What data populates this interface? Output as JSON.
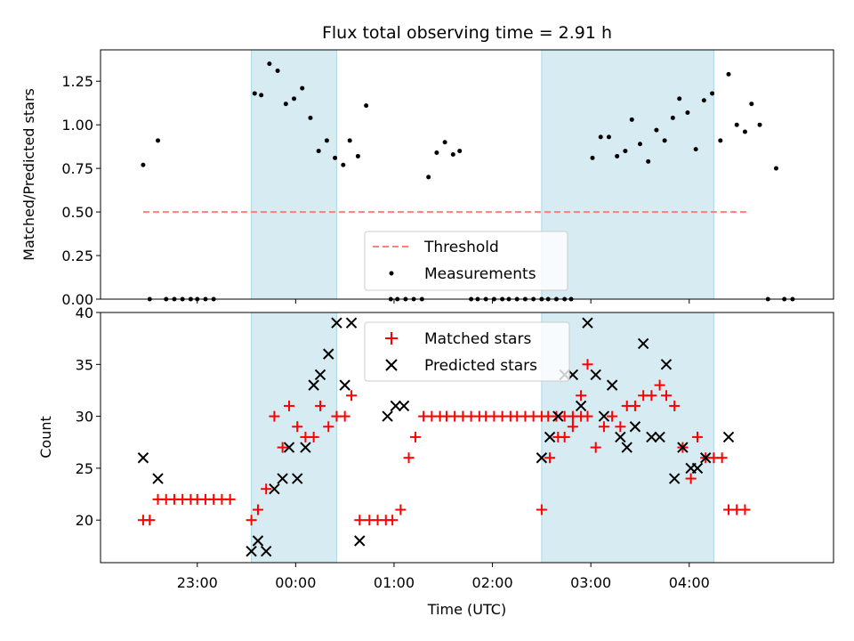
{
  "chart_data": [
    {
      "type": "scatter",
      "title": "Flux total observing time = 2.91 h",
      "ylabel": "Matched/Predicted stars",
      "ylim": [
        0,
        1.43
      ],
      "yticks": [
        0.0,
        0.25,
        0.5,
        0.75,
        1.0,
        1.25
      ],
      "ytick_labels": [
        "0.00",
        "0.25",
        "0.50",
        "0.75",
        "1.00",
        "1.25"
      ],
      "shaded_spans": [
        [
          "23:33",
          "00:25"
        ],
        [
          "02:30",
          "04:15"
        ]
      ],
      "threshold_line": {
        "y": 0.5,
        "x_start": "22:27",
        "x_end": "04:36",
        "color": "#ff7f7f",
        "style": "dashed"
      },
      "legend": {
        "position": "bottom-center",
        "entries": [
          "Threshold",
          "Measurements"
        ]
      },
      "series": [
        {
          "name": "Measurements",
          "color": "#000000",
          "marker": "dot",
          "points": [
            [
              "22:27",
              0.77
            ],
            [
              "22:31",
              0.0
            ],
            [
              "22:36",
              0.91
            ],
            [
              "22:41",
              0.0
            ],
            [
              "22:46",
              0.0
            ],
            [
              "22:51",
              0.0
            ],
            [
              "22:56",
              0.0
            ],
            [
              "23:00",
              0.0
            ],
            [
              "23:05",
              0.0
            ],
            [
              "23:10",
              0.0
            ],
            [
              "23:35",
              1.18
            ],
            [
              "23:39",
              1.17
            ],
            [
              "23:44",
              1.35
            ],
            [
              "23:49",
              1.31
            ],
            [
              "23:54",
              1.12
            ],
            [
              "23:59",
              1.15
            ],
            [
              "00:04",
              1.21
            ],
            [
              "00:09",
              1.04
            ],
            [
              "00:14",
              0.85
            ],
            [
              "00:19",
              0.91
            ],
            [
              "00:24",
              0.81
            ],
            [
              "00:29",
              0.77
            ],
            [
              "00:33",
              0.91
            ],
            [
              "00:38",
              0.82
            ],
            [
              "00:43",
              1.11
            ],
            [
              "00:58",
              0.0
            ],
            [
              "01:02",
              0.0
            ],
            [
              "01:07",
              0.0
            ],
            [
              "01:12",
              0.0
            ],
            [
              "01:17",
              0.0
            ],
            [
              "01:21",
              0.7
            ],
            [
              "01:26",
              0.84
            ],
            [
              "01:31",
              0.9
            ],
            [
              "01:36",
              0.83
            ],
            [
              "01:40",
              0.85
            ],
            [
              "01:47",
              0.0
            ],
            [
              "01:51",
              0.0
            ],
            [
              "01:56",
              0.0
            ],
            [
              "02:01",
              0.0
            ],
            [
              "02:06",
              0.0
            ],
            [
              "02:10",
              0.0
            ],
            [
              "02:15",
              0.0
            ],
            [
              "02:20",
              0.0
            ],
            [
              "02:25",
              0.0
            ],
            [
              "02:30",
              0.0
            ],
            [
              "02:34",
              0.0
            ],
            [
              "02:39",
              0.0
            ],
            [
              "02:44",
              0.0
            ],
            [
              "02:48",
              0.0
            ],
            [
              "03:01",
              0.81
            ],
            [
              "03:06",
              0.93
            ],
            [
              "03:11",
              0.93
            ],
            [
              "03:16",
              0.82
            ],
            [
              "03:21",
              0.85
            ],
            [
              "03:25",
              1.03
            ],
            [
              "03:30",
              0.89
            ],
            [
              "03:35",
              0.79
            ],
            [
              "03:40",
              0.97
            ],
            [
              "03:45",
              0.91
            ],
            [
              "03:50",
              1.04
            ],
            [
              "03:54",
              1.15
            ],
            [
              "03:59",
              1.07
            ],
            [
              "04:04",
              0.86
            ],
            [
              "04:09",
              1.14
            ],
            [
              "04:14",
              1.18
            ],
            [
              "04:19",
              0.91
            ],
            [
              "04:24",
              1.29
            ],
            [
              "04:29",
              1.0
            ],
            [
              "04:34",
              0.96
            ],
            [
              "04:38",
              1.12
            ],
            [
              "04:43",
              1.0
            ],
            [
              "04:48",
              0.0
            ],
            [
              "04:53",
              0.75
            ],
            [
              "04:58",
              0.0
            ],
            [
              "05:03",
              0.0
            ]
          ]
        }
      ]
    },
    {
      "type": "scatter",
      "xlabel": "Time (UTC)",
      "ylabel": "Count",
      "ylim": [
        15.9,
        40
      ],
      "yticks": [
        20,
        25,
        30,
        35,
        40
      ],
      "ytick_labels": [
        "20",
        "25",
        "30",
        "35",
        "40"
      ],
      "xticks": [
        "23:00",
        "00:00",
        "01:00",
        "02:00",
        "03:00",
        "04:00"
      ],
      "shaded_spans": [
        [
          "23:33",
          "00:25"
        ],
        [
          "02:30",
          "04:15"
        ]
      ],
      "legend": {
        "position": "top-center",
        "entries": [
          "Matched stars",
          "Predicted stars"
        ]
      },
      "series": [
        {
          "name": "Matched stars",
          "color": "#ff0000",
          "marker": "plus",
          "points": [
            [
              "22:27",
              20
            ],
            [
              "22:31",
              20
            ],
            [
              "22:36",
              22
            ],
            [
              "22:41",
              22
            ],
            [
              "22:46",
              22
            ],
            [
              "22:51",
              22
            ],
            [
              "22:56",
              22
            ],
            [
              "23:00",
              22
            ],
            [
              "23:05",
              22
            ],
            [
              "23:10",
              22
            ],
            [
              "23:15",
              22
            ],
            [
              "23:20",
              22
            ],
            [
              "23:33",
              20
            ],
            [
              "23:37",
              21
            ],
            [
              "23:42",
              23
            ],
            [
              "23:47",
              30
            ],
            [
              "23:52",
              27
            ],
            [
              "23:56",
              31
            ],
            [
              "00:01",
              29
            ],
            [
              "00:06",
              28
            ],
            [
              "00:11",
              28
            ],
            [
              "00:15",
              31
            ],
            [
              "00:20",
              29
            ],
            [
              "00:25",
              30
            ],
            [
              "00:30",
              30
            ],
            [
              "00:34",
              32
            ],
            [
              "00:39",
              20
            ],
            [
              "00:45",
              20
            ],
            [
              "00:50",
              20
            ],
            [
              "00:55",
              20
            ],
            [
              "00:59",
              20
            ],
            [
              "01:04",
              21
            ],
            [
              "01:09",
              26
            ],
            [
              "01:13",
              28
            ],
            [
              "01:18",
              30
            ],
            [
              "01:23",
              30
            ],
            [
              "01:28",
              30
            ],
            [
              "01:32",
              30
            ],
            [
              "01:37",
              30
            ],
            [
              "01:42",
              30
            ],
            [
              "01:47",
              30
            ],
            [
              "01:52",
              30
            ],
            [
              "01:56",
              30
            ],
            [
              "02:01",
              30
            ],
            [
              "02:06",
              30
            ],
            [
              "02:11",
              30
            ],
            [
              "02:15",
              30
            ],
            [
              "02:20",
              30
            ],
            [
              "02:25",
              30
            ],
            [
              "02:30",
              30
            ],
            [
              "02:34",
              30
            ],
            [
              "02:39",
              30
            ],
            [
              "02:44",
              30
            ],
            [
              "02:49",
              30
            ],
            [
              "02:54",
              30
            ],
            [
              "02:58",
              30
            ],
            [
              "02:30",
              21
            ],
            [
              "02:35",
              26
            ],
            [
              "02:40",
              28
            ],
            [
              "02:44",
              28
            ],
            [
              "02:49",
              29
            ],
            [
              "02:54",
              32
            ],
            [
              "02:58",
              35
            ],
            [
              "03:03",
              27
            ],
            [
              "03:08",
              29
            ],
            [
              "03:13",
              30
            ],
            [
              "03:18",
              29
            ],
            [
              "03:22",
              31
            ],
            [
              "03:27",
              31
            ],
            [
              "03:32",
              32
            ],
            [
              "03:37",
              32
            ],
            [
              "03:42",
              33
            ],
            [
              "03:46",
              32
            ],
            [
              "03:51",
              31
            ],
            [
              "03:56",
              27
            ],
            [
              "04:01",
              24
            ],
            [
              "04:05",
              28
            ],
            [
              "04:10",
              26
            ],
            [
              "04:15",
              26
            ],
            [
              "04:20",
              26
            ],
            [
              "04:24",
              21
            ],
            [
              "04:29",
              21
            ],
            [
              "04:34",
              21
            ]
          ]
        },
        {
          "name": "Predicted stars",
          "color": "#000000",
          "marker": "x",
          "points": [
            [
              "22:27",
              26
            ],
            [
              "22:36",
              24
            ],
            [
              "23:33",
              17
            ],
            [
              "23:37",
              18
            ],
            [
              "23:42",
              17
            ],
            [
              "23:47",
              23
            ],
            [
              "23:52",
              24
            ],
            [
              "23:56",
              27
            ],
            [
              "00:01",
              24
            ],
            [
              "00:06",
              27
            ],
            [
              "00:11",
              33
            ],
            [
              "00:15",
              34
            ],
            [
              "00:20",
              36
            ],
            [
              "00:25",
              39
            ],
            [
              "00:30",
              33
            ],
            [
              "00:34",
              39
            ],
            [
              "00:39",
              18
            ],
            [
              "00:56",
              30
            ],
            [
              "01:01",
              31
            ],
            [
              "01:06",
              31
            ],
            [
              "02:30",
              26
            ],
            [
              "02:35",
              28
            ],
            [
              "02:40",
              30
            ],
            [
              "02:44",
              34
            ],
            [
              "02:49",
              34
            ],
            [
              "02:54",
              31
            ],
            [
              "02:58",
              39
            ],
            [
              "03:03",
              34
            ],
            [
              "03:08",
              30
            ],
            [
              "03:13",
              33
            ],
            [
              "03:18",
              28
            ],
            [
              "03:22",
              27
            ],
            [
              "03:27",
              29
            ],
            [
              "03:32",
              37
            ],
            [
              "03:37",
              28
            ],
            [
              "03:42",
              28
            ],
            [
              "03:46",
              35
            ],
            [
              "03:51",
              24
            ],
            [
              "03:56",
              27
            ],
            [
              "04:01",
              25
            ],
            [
              "04:05",
              25
            ],
            [
              "04:10",
              26
            ],
            [
              "04:24",
              28
            ]
          ]
        }
      ]
    }
  ]
}
